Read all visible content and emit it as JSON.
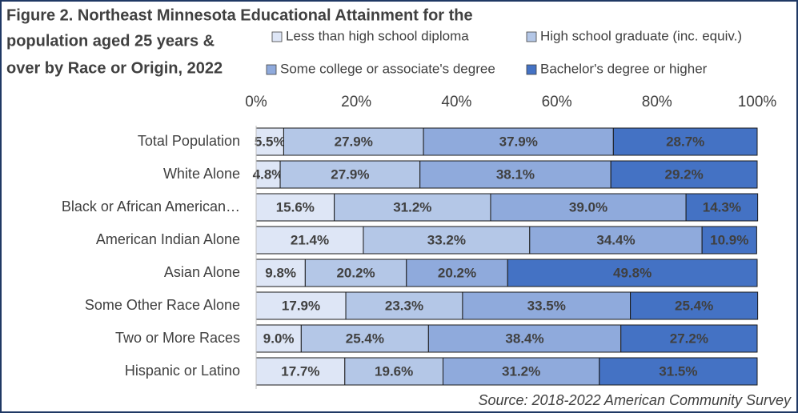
{
  "chart_data": {
    "type": "stacked_bar_horizontal",
    "title_lines": [
      "Figure 2. Northeast Minnesota Educational Attainment for the",
      "population aged 25 years &",
      "over by Race or Origin, 2022"
    ],
    "source": "Source: 2018-2022 American Community Survey",
    "categories": [
      "Total Population",
      "White Alone",
      "Black or African American…",
      "American Indian Alone",
      "Asian Alone",
      "Some Other Race Alone",
      "Two or More Races",
      "Hispanic or Latino"
    ],
    "series": [
      {
        "name": "Less than high school diploma",
        "color": "#dee6f6",
        "values": [
          5.5,
          4.8,
          15.6,
          21.4,
          9.8,
          17.9,
          9.0,
          17.7
        ],
        "value_labels": [
          "5.5%",
          "4.8%",
          "15.6%",
          "21.4%",
          "9.8%",
          "17.9%",
          "9.0%",
          "17.7%"
        ]
      },
      {
        "name": "High school graduate (inc. equiv.)",
        "color": "#b4c7e7",
        "values": [
          27.9,
          27.9,
          31.2,
          33.2,
          20.2,
          23.3,
          25.4,
          19.6
        ],
        "value_labels": [
          "27.9%",
          "27.9%",
          "31.2%",
          "33.2%",
          "20.2%",
          "23.3%",
          "25.4%",
          "19.6%"
        ]
      },
      {
        "name": "Some college or associate's degree",
        "color": "#8faadc",
        "values": [
          37.9,
          38.1,
          39.0,
          34.4,
          20.2,
          33.5,
          38.4,
          31.2
        ],
        "value_labels": [
          "37.9%",
          "38.1%",
          "39.0%",
          "34.4%",
          "20.2%",
          "33.5%",
          "38.4%",
          "31.2%"
        ]
      },
      {
        "name": "Bachelor's degree or higher",
        "color": "#4472c4",
        "values": [
          28.7,
          29.2,
          14.3,
          10.9,
          49.8,
          25.4,
          27.2,
          31.5
        ],
        "value_labels": [
          "28.7%",
          "29.2%",
          "14.3%",
          "10.9%",
          "49.8%",
          "25.4%",
          "27.2%",
          "31.5%"
        ]
      }
    ],
    "xlim": [
      0,
      100
    ],
    "xticks": [
      {
        "value": 0,
        "label": "0%"
      },
      {
        "value": 20,
        "label": "20%"
      },
      {
        "value": 40,
        "label": "40%"
      },
      {
        "value": 60,
        "label": "60%"
      },
      {
        "value": 80,
        "label": "80%"
      },
      {
        "value": 100,
        "label": "100%"
      }
    ]
  }
}
